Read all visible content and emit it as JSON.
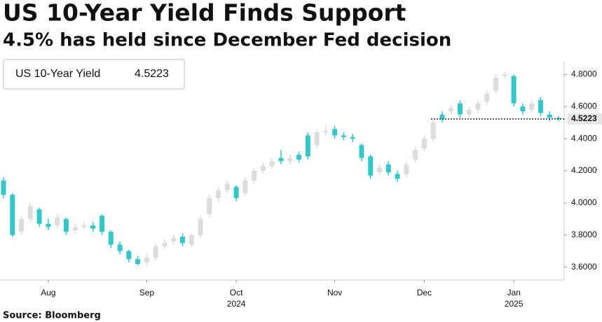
{
  "chart_data": {
    "type": "candlestick",
    "title": "US 10-Year Yield Finds Support",
    "subtitle": "4.5% has held since December Fed decision",
    "source": "Source: Bloomberg",
    "categories": [
      null,
      null,
      null,
      null,
      null,
      "Aug",
      null,
      null,
      null,
      null,
      null,
      null,
      null,
      null,
      null,
      null,
      "Sep",
      null,
      null,
      null,
      null,
      null,
      null,
      null,
      null,
      null,
      "Oct",
      null,
      null,
      null,
      null,
      null,
      null,
      null,
      null,
      null,
      null,
      "Nov",
      null,
      null,
      null,
      null,
      null,
      null,
      null,
      null,
      null,
      "Dec",
      null,
      null,
      null,
      null,
      null,
      null,
      null,
      null,
      null,
      "Jan",
      null,
      null,
      null,
      null,
      null
    ],
    "year_labels": [
      "2024",
      "2025"
    ],
    "series": [
      {
        "name": "US 10-Year Yield",
        "up_color": "#dcdcdc",
        "down_color": "#33c7c9",
        "open": [
          4.14,
          4.05,
          3.82,
          3.9,
          3.96,
          3.87,
          3.86,
          3.9,
          3.83,
          3.85,
          3.86,
          3.92,
          3.82,
          3.74,
          3.7,
          3.65,
          3.63,
          3.66,
          3.73,
          3.76,
          3.79,
          3.74,
          3.8,
          3.93,
          4.03,
          4.08,
          4.1,
          4.06,
          4.14,
          4.2,
          4.23,
          4.28,
          4.26,
          4.3,
          4.42,
          4.36,
          4.44,
          4.46,
          4.42,
          4.41,
          4.36,
          4.29,
          4.19,
          4.24,
          4.18,
          4.18,
          4.27,
          4.34,
          4.4,
          4.55,
          4.57,
          4.62,
          4.55,
          4.58,
          4.63,
          4.7,
          4.79,
          4.79,
          4.6,
          4.58,
          4.64,
          4.55,
          4.53
        ],
        "high": [
          4.16,
          4.06,
          3.92,
          4.0,
          3.97,
          3.9,
          3.93,
          3.91,
          3.87,
          3.88,
          3.88,
          3.93,
          3.83,
          3.76,
          3.71,
          3.67,
          3.68,
          3.75,
          3.77,
          3.8,
          3.81,
          3.81,
          3.92,
          4.05,
          4.1,
          4.14,
          4.11,
          4.16,
          4.22,
          4.25,
          4.28,
          4.33,
          4.3,
          4.32,
          4.44,
          4.46,
          4.48,
          4.48,
          4.44,
          4.43,
          4.37,
          4.3,
          4.24,
          4.26,
          4.2,
          4.26,
          4.35,
          4.42,
          4.52,
          4.57,
          4.61,
          4.64,
          4.6,
          4.64,
          4.7,
          4.8,
          4.82,
          4.8,
          4.62,
          4.64,
          4.66,
          4.57,
          4.54
        ],
        "low": [
          4.03,
          3.79,
          3.8,
          3.88,
          3.85,
          3.83,
          3.84,
          3.8,
          3.81,
          3.83,
          3.82,
          3.8,
          3.72,
          3.68,
          3.63,
          3.61,
          3.61,
          3.64,
          3.71,
          3.74,
          3.73,
          3.72,
          3.78,
          3.91,
          4.01,
          4.06,
          4.01,
          4.04,
          4.12,
          4.18,
          4.21,
          4.24,
          4.24,
          4.25,
          4.27,
          4.34,
          4.42,
          4.4,
          4.39,
          4.38,
          4.26,
          4.15,
          4.17,
          4.17,
          4.13,
          4.16,
          4.25,
          4.32,
          4.38,
          4.5,
          4.55,
          4.53,
          4.53,
          4.56,
          4.61,
          4.68,
          4.77,
          4.6,
          4.55,
          4.56,
          4.54,
          4.51,
          4.51
        ],
        "close": [
          4.05,
          3.8,
          3.9,
          3.98,
          3.87,
          3.85,
          3.91,
          3.82,
          3.85,
          3.86,
          3.84,
          3.82,
          3.74,
          3.7,
          3.65,
          3.62,
          3.66,
          3.73,
          3.75,
          3.78,
          3.75,
          3.8,
          3.9,
          4.03,
          4.08,
          4.12,
          4.03,
          4.14,
          4.2,
          4.23,
          4.26,
          4.26,
          4.28,
          4.27,
          4.29,
          4.44,
          4.45,
          4.42,
          4.41,
          4.4,
          4.28,
          4.17,
          4.22,
          4.19,
          4.15,
          4.24,
          4.33,
          4.4,
          4.5,
          4.52,
          4.59,
          4.55,
          4.58,
          4.62,
          4.68,
          4.78,
          4.8,
          4.62,
          4.57,
          4.62,
          4.56,
          4.53,
          4.5223
        ]
      }
    ],
    "ylim": [
      3.52,
      4.88
    ],
    "yticks": [
      {
        "value": 3.6,
        "label": "3.6000"
      },
      {
        "value": 3.8,
        "label": "3.8000"
      },
      {
        "value": 4.0,
        "label": "4.0000"
      },
      {
        "value": 4.2,
        "label": "4.2000"
      },
      {
        "value": 4.4,
        "label": "4.4000"
      },
      {
        "value": 4.6,
        "label": "4.6000"
      },
      {
        "value": 4.8,
        "label": "4.8000"
      }
    ]
  }
}
